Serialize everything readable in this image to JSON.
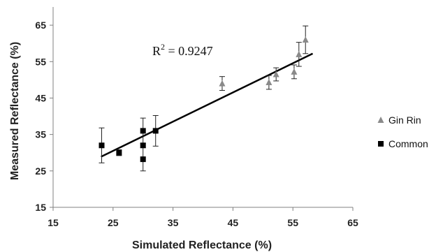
{
  "chart_data": {
    "type": "scatter",
    "xlabel": "Simulated Reflectance (%)",
    "ylabel": "Measured Reflectance (%)",
    "xlim": [
      15,
      65
    ],
    "ylim": [
      15,
      70
    ],
    "xticks": [
      "15",
      "25",
      "35",
      "45",
      "55",
      "65"
    ],
    "yticks": [
      "15",
      "25",
      "35",
      "45",
      "55",
      "65"
    ],
    "grid": false,
    "legend_position": "right",
    "annotation": {
      "r2_prefix": "R",
      "r2_exponent": "2",
      "r2_value": " = 0.9247"
    },
    "trendline": {
      "x": [
        23,
        58.3
      ],
      "y": [
        28.9,
        57.2
      ]
    },
    "series": [
      {
        "name": "Gin Rin",
        "marker": "triangle",
        "color": "#8a8a8a",
        "points": [
          {
            "x": 43.2,
            "y": 49.0,
            "err": 1.9
          },
          {
            "x": 51.0,
            "y": 49.3,
            "err": 1.9
          },
          {
            "x": 52.2,
            "y": 51.5,
            "err": 1.8
          },
          {
            "x": 55.2,
            "y": 52.2,
            "err": 1.9
          },
          {
            "x": 56.0,
            "y": 57.0,
            "err": 3.3
          },
          {
            "x": 57.1,
            "y": 61.0,
            "err": 3.8
          }
        ]
      },
      {
        "name": "Common",
        "marker": "square",
        "color": "#000000",
        "points": [
          {
            "x": 23.1,
            "y": 32.0,
            "err": 4.8
          },
          {
            "x": 26.0,
            "y": 30.0,
            "err": 0.8
          },
          {
            "x": 30.0,
            "y": 36.0,
            "err": 3.5
          },
          {
            "x": 30.0,
            "y": 32.0,
            "err": 0
          },
          {
            "x": 30.0,
            "y": 28.2,
            "err": 3.2
          },
          {
            "x": 32.1,
            "y": 36.0,
            "err": 4.2
          }
        ]
      }
    ]
  }
}
